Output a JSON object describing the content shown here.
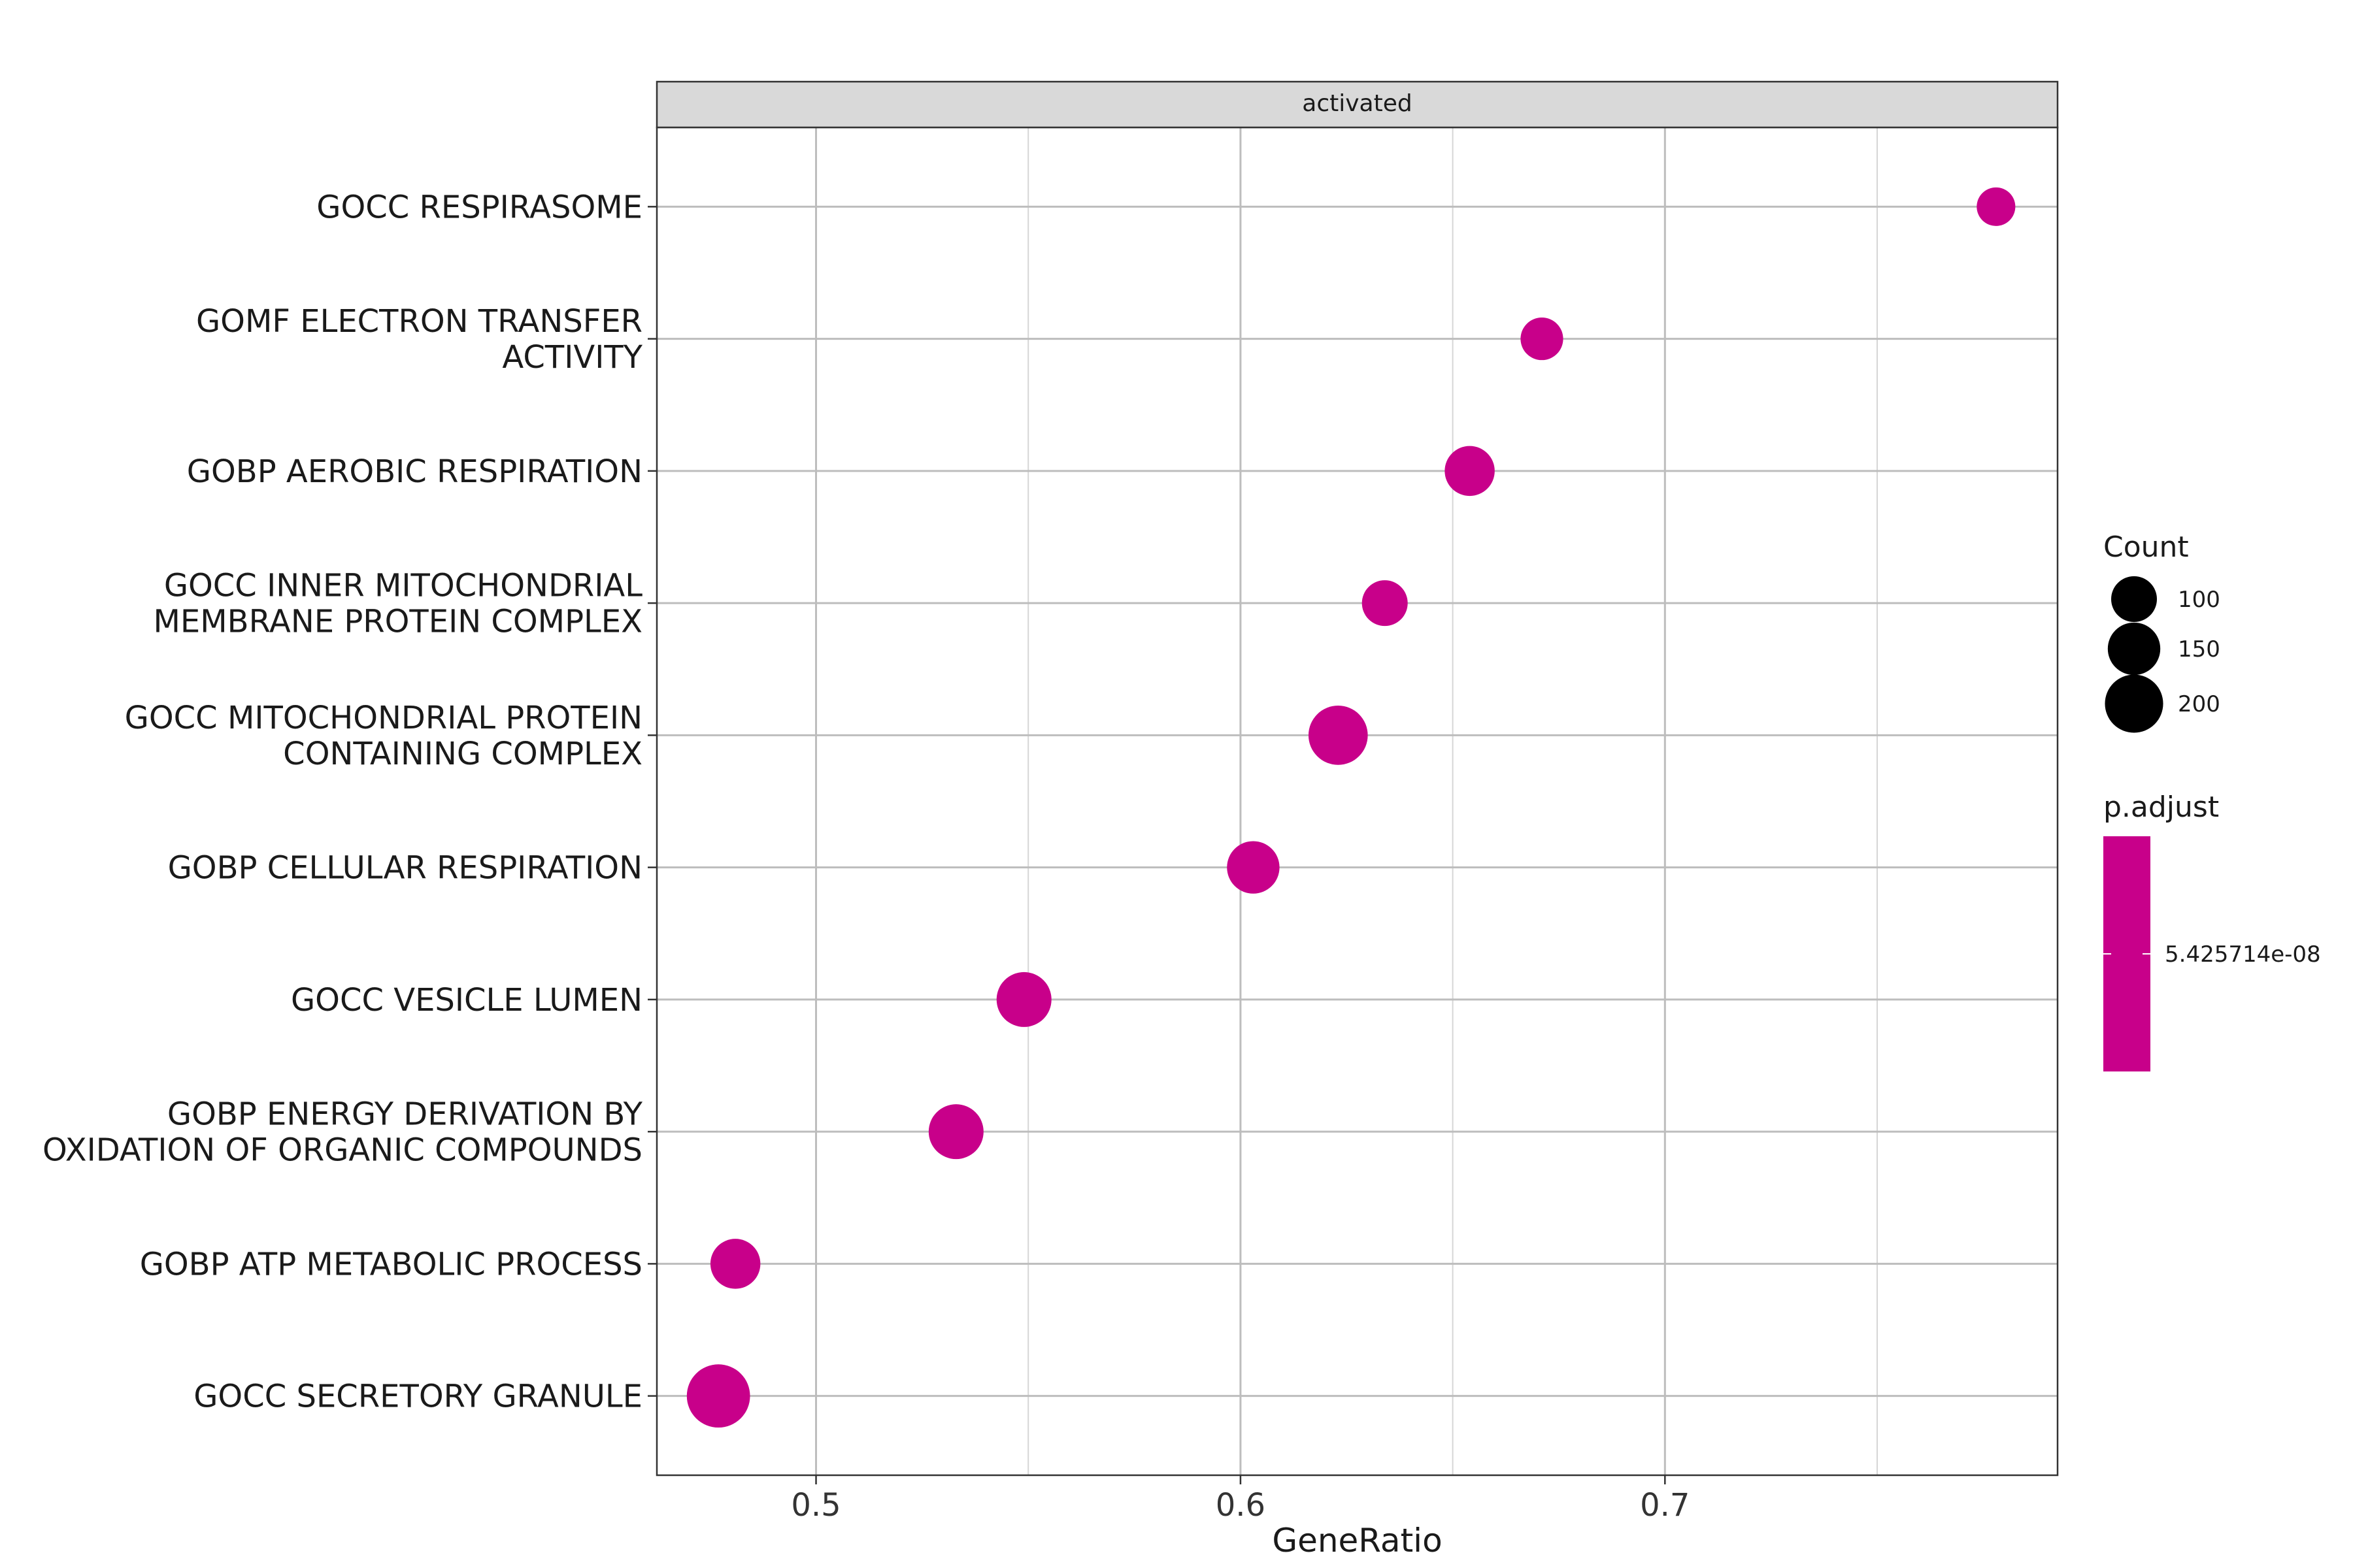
{
  "chart_data": {
    "type": "scatter",
    "facet": "activated",
    "xlabel": "GeneRatio",
    "ylabel": "",
    "xlim": [
      0.4625,
      0.7925
    ],
    "x_ticks": [
      0.5,
      0.6,
      0.7
    ],
    "x_tick_labels": [
      "0.5",
      "0.6",
      "0.7"
    ],
    "grid": true,
    "legend_position": "right",
    "categories": [
      "GOCC RESPIRASOME",
      "GOMF ELECTRON TRANSFER\nACTIVITY",
      "GOBP AEROBIC RESPIRATION",
      "GOCC INNER MITOCHONDRIAL\nMEMBRANE PROTEIN COMPLEX",
      "GOCC MITOCHONDRIAL PROTEIN\nCONTAINING COMPLEX",
      "GOBP CELLULAR RESPIRATION",
      "GOCC VESICLE LUMEN",
      "GOBP ENERGY DERIVATION BY\nOXIDATION OF ORGANIC COMPOUNDS",
      "GOBP ATP METABOLIC PROCESS",
      "GOCC SECRETORY GRANULE"
    ],
    "points": [
      {
        "term": "GOCC RESPIRASOME",
        "x": 0.778,
        "count": 58
      },
      {
        "term": "GOMF ELECTRON TRANSFER ACTIVITY",
        "x": 0.671,
        "count": 80
      },
      {
        "term": "GOBP AEROBIC RESPIRATION",
        "x": 0.654,
        "count": 130
      },
      {
        "term": "GOCC INNER MITOCHONDRIAL MEMBRANE PROTEIN COMPLEX",
        "x": 0.634,
        "count": 100
      },
      {
        "term": "GOCC MITOCHONDRIAL PROTEIN CONTAINING COMPLEX",
        "x": 0.623,
        "count": 210
      },
      {
        "term": "GOBP CELLULAR RESPIRATION",
        "x": 0.603,
        "count": 150
      },
      {
        "term": "GOCC VESICLE LUMEN",
        "x": 0.549,
        "count": 170
      },
      {
        "term": "GOBP ENERGY DERIVATION BY OXIDATION OF ORGANIC COMPOUNDS",
        "x": 0.533,
        "count": 170
      },
      {
        "term": "GOBP ATP METABOLIC PROCESS",
        "x": 0.481,
        "count": 130
      },
      {
        "term": "GOCC SECRETORY GRANULE",
        "x": 0.477,
        "count": 250
      }
    ],
    "size_legend": {
      "title": "Count",
      "values": [
        100,
        150,
        200
      ],
      "labels": [
        "100",
        "150",
        "200"
      ]
    },
    "color_legend": {
      "title": "p.adjust",
      "labels": [
        "5.425714e-08"
      ]
    },
    "point_color": "#c8008a"
  }
}
